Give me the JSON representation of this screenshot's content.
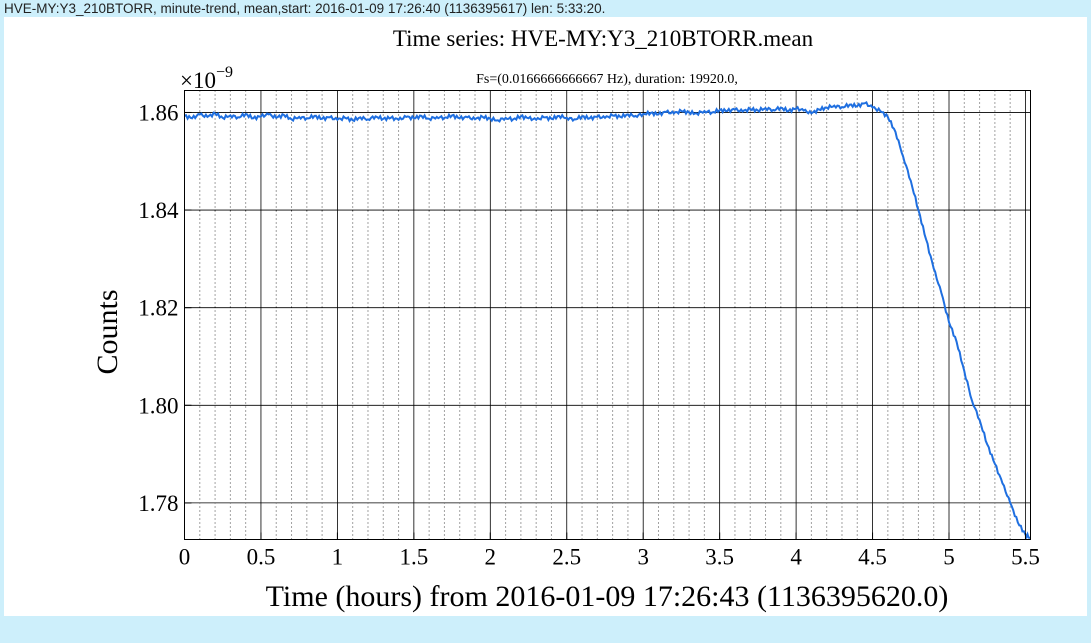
{
  "window": {
    "title": "HVE-MY:Y3_210BTORR, minute-trend, mean,start: 2016-01-09 17:26:40 (1136395617) len: 5:33:20."
  },
  "chart_data": {
    "type": "line",
    "title": "Time series:  HVE-MY:Y3_210BTORR.mean",
    "subtitle": "Fs=(0.0166666666667 Hz), duration: 19920.0,",
    "xlabel": "Time (hours) from 2016-01-09 17:26:43 (1136395620.0)",
    "ylabel": "Counts",
    "y_multiplier_label": "×10",
    "y_multiplier_exponent": "−9",
    "xlim": [
      0,
      5.533
    ],
    "ylim": [
      1.7725,
      1.8645
    ],
    "x_ticks": [
      0,
      0.5,
      1,
      1.5,
      2,
      2.5,
      3,
      3.5,
      4,
      4.5,
      5,
      5.5
    ],
    "x_tick_labels": [
      "0",
      "0.5",
      "1",
      "1.5",
      "2",
      "2.5",
      "3",
      "3.5",
      "4",
      "4.5",
      "5",
      "5.5"
    ],
    "y_ticks": [
      1.78,
      1.8,
      1.82,
      1.84,
      1.86
    ],
    "y_tick_labels": [
      "1.78",
      "1.80",
      "1.82",
      "1.84",
      "1.86"
    ],
    "grid": true,
    "minor_grid": true,
    "line_color": "#1f6fe0",
    "series": [
      {
        "x": [
          0,
          0.05,
          0.1,
          0.15,
          0.2,
          0.25,
          0.3,
          0.35,
          0.4,
          0.45,
          0.5,
          0.55,
          0.6,
          0.65,
          0.7,
          0.75,
          0.8,
          0.85,
          0.9,
          0.95,
          1.0,
          1.05,
          1.1,
          1.15,
          1.2,
          1.25,
          1.3,
          1.35,
          1.4,
          1.45,
          1.5,
          1.55,
          1.6,
          1.65,
          1.7,
          1.75,
          1.8,
          1.85,
          1.9,
          1.95,
          2.0,
          2.05,
          2.1,
          2.15,
          2.2,
          2.25,
          2.3,
          2.35,
          2.4,
          2.45,
          2.5,
          2.55,
          2.6,
          2.65,
          2.7,
          2.75,
          2.8,
          2.85,
          2.9,
          2.95,
          3.0,
          3.05,
          3.1,
          3.15,
          3.2,
          3.25,
          3.3,
          3.35,
          3.4,
          3.45,
          3.5,
          3.55,
          3.6,
          3.65,
          3.7,
          3.75,
          3.8,
          3.85,
          3.9,
          3.95,
          4.0,
          4.05,
          4.1,
          4.15,
          4.2,
          4.25,
          4.3,
          4.35,
          4.4,
          4.45,
          4.5,
          4.55,
          4.6,
          4.65,
          4.7,
          4.75,
          4.8,
          4.85,
          4.9,
          4.95,
          5.0,
          5.05,
          5.1,
          5.15,
          5.2,
          5.25,
          5.3,
          5.35,
          5.4,
          5.45,
          5.5,
          5.533
        ],
        "y": [
          1.8593,
          1.8588,
          1.8596,
          1.8591,
          1.8598,
          1.8589,
          1.8594,
          1.859,
          1.8597,
          1.8588,
          1.8592,
          1.8596,
          1.8589,
          1.8595,
          1.8586,
          1.8591,
          1.8588,
          1.8593,
          1.8587,
          1.859,
          1.8585,
          1.8589,
          1.8584,
          1.859,
          1.8586,
          1.8592,
          1.8587,
          1.8589,
          1.8585,
          1.8591,
          1.8588,
          1.8593,
          1.8587,
          1.8591,
          1.8589,
          1.8594,
          1.8588,
          1.859,
          1.8586,
          1.8591,
          1.8587,
          1.8584,
          1.8589,
          1.8586,
          1.8592,
          1.8588,
          1.8585,
          1.859,
          1.8587,
          1.8593,
          1.8589,
          1.8586,
          1.8592,
          1.8588,
          1.8591,
          1.8589,
          1.8594,
          1.8591,
          1.8596,
          1.8593,
          1.8597,
          1.8599,
          1.8596,
          1.8601,
          1.8598,
          1.8603,
          1.86,
          1.8598,
          1.8603,
          1.86,
          1.8605,
          1.8603,
          1.8606,
          1.8602,
          1.8607,
          1.8604,
          1.8609,
          1.8605,
          1.861,
          1.8603,
          1.8608,
          1.8604,
          1.8598,
          1.8606,
          1.861,
          1.8614,
          1.8611,
          1.8616,
          1.8613,
          1.8619,
          1.861,
          1.8603,
          1.8591,
          1.856,
          1.851,
          1.846,
          1.84,
          1.834,
          1.828,
          1.823,
          1.817,
          1.813,
          1.807,
          1.801,
          1.797,
          1.792,
          1.788,
          1.784,
          1.78,
          1.776,
          1.7735,
          1.7728
        ]
      }
    ]
  }
}
